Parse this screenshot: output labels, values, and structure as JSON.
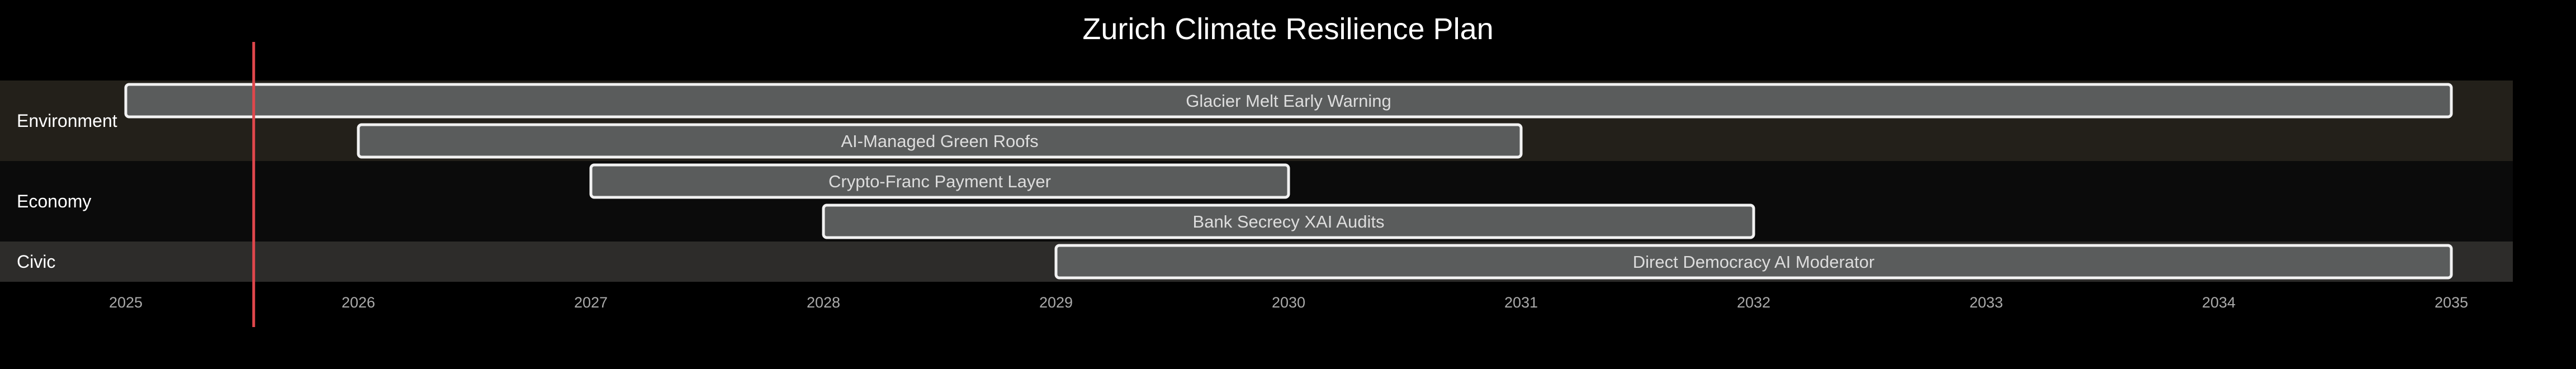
{
  "chart_data": {
    "type": "gantt",
    "title": "Zurich Climate Resilience Plan",
    "x_axis": {
      "ticks": [
        "2025",
        "2026",
        "2027",
        "2028",
        "2029",
        "2030",
        "2031",
        "2032",
        "2033",
        "2034",
        "2035"
      ],
      "range": [
        2025,
        2035
      ]
    },
    "today_marker": 2025.55,
    "sections": [
      {
        "name": "Environment",
        "band_color": "#23201a",
        "tasks": [
          {
            "label": "Glacier Melt Early Warning",
            "start": 2025.0,
            "end": 2035.0
          },
          {
            "label": "AI-Managed Green Roofs",
            "start": 2026.0,
            "end": 2031.0
          }
        ]
      },
      {
        "name": "Economy",
        "band_color": "#0b0b0b",
        "tasks": [
          {
            "label": "Crypto-Franc Payment Layer",
            "start": 2027.0,
            "end": 2030.0
          },
          {
            "label": "Bank Secrecy XAI Audits",
            "start": 2028.0,
            "end": 2032.0
          }
        ]
      },
      {
        "name": "Civic",
        "band_color": "#2d2c2a",
        "tasks": [
          {
            "label": "Direct Democracy AI Moderator",
            "start": 2029.0,
            "end": 2035.0
          }
        ]
      }
    ],
    "colors": {
      "background": "#000000",
      "bar_fill": "#5a5c5c",
      "bar_stroke": "#f2f2f2",
      "today_line": "#e0474c"
    }
  }
}
